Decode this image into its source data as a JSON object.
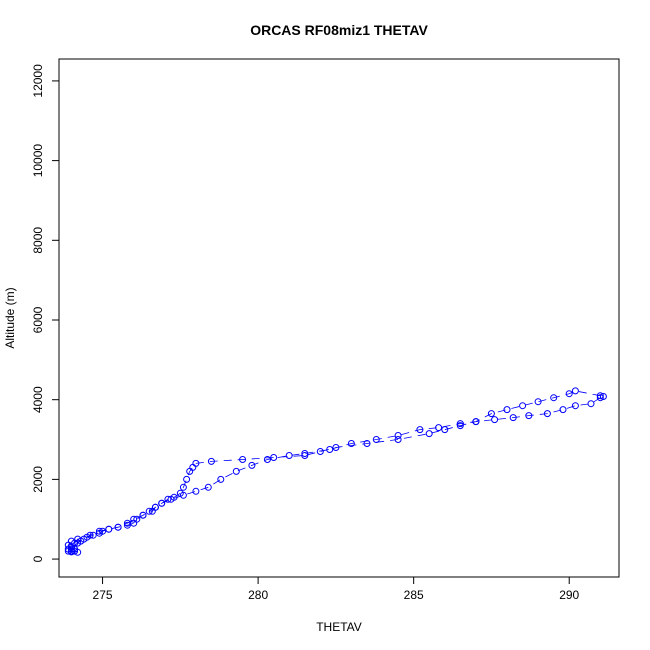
{
  "chart_data": {
    "type": "scatter",
    "title": "ORCAS RF08miz1 THETAV",
    "xlabel": "THETAV",
    "ylabel": "Altitude (m)",
    "xlim": [
      273.6,
      291.6
    ],
    "ylim": [
      -450,
      12550
    ],
    "xticks": [
      "275",
      "280",
      "285",
      "290"
    ],
    "yticks": [
      "0",
      "2000",
      "4000",
      "6000",
      "8000",
      "10000",
      "12000"
    ],
    "grid": false,
    "legend": "none",
    "colors": {
      "series": "#0000ff",
      "axis": "#000000"
    },
    "series": [
      {
        "marker": "open-circle",
        "line": "dashed",
        "points": [
          [
            274.0,
            300
          ],
          [
            274.1,
            250
          ],
          [
            273.9,
            200
          ],
          [
            274.0,
            180
          ],
          [
            274.1,
            200
          ],
          [
            274.2,
            170
          ],
          [
            274.0,
            250
          ],
          [
            273.9,
            350
          ],
          [
            274.0,
            450
          ],
          [
            274.1,
            400
          ],
          [
            274.2,
            500
          ],
          [
            274.3,
            450
          ],
          [
            274.5,
            550
          ],
          [
            274.7,
            600
          ],
          [
            274.9,
            650
          ],
          [
            275.0,
            700
          ],
          [
            275.2,
            750
          ],
          [
            275.5,
            800
          ],
          [
            275.8,
            850
          ],
          [
            276.0,
            900
          ],
          [
            276.1,
            1000
          ],
          [
            276.3,
            1100
          ],
          [
            276.5,
            1200
          ],
          [
            276.7,
            1300
          ],
          [
            276.9,
            1400
          ],
          [
            277.1,
            1500
          ],
          [
            277.3,
            1550
          ],
          [
            277.5,
            1650
          ],
          [
            277.6,
            1800
          ],
          [
            277.7,
            2000
          ],
          [
            277.8,
            2200
          ],
          [
            277.9,
            2300
          ],
          [
            278.0,
            2400
          ],
          [
            278.5,
            2450
          ],
          [
            279.5,
            2500
          ],
          [
            280.5,
            2550
          ],
          [
            281.5,
            2600
          ],
          [
            282.0,
            2700
          ],
          [
            282.5,
            2800
          ],
          [
            283.5,
            2900
          ],
          [
            284.5,
            3000
          ],
          [
            285.5,
            3150
          ],
          [
            286.0,
            3250
          ],
          [
            286.5,
            3350
          ],
          [
            287.0,
            3450
          ],
          [
            287.5,
            3650
          ],
          [
            288.0,
            3750
          ],
          [
            288.5,
            3850
          ],
          [
            289.0,
            3950
          ],
          [
            289.5,
            4050
          ],
          [
            290.0,
            4150
          ],
          [
            290.2,
            4220
          ],
          [
            291.0,
            4100
          ],
          [
            291.1,
            4080
          ],
          [
            291.0,
            4050
          ],
          [
            290.7,
            3900
          ],
          [
            290.2,
            3850
          ],
          [
            289.8,
            3750
          ],
          [
            289.3,
            3650
          ],
          [
            288.7,
            3600
          ],
          [
            288.2,
            3550
          ],
          [
            287.6,
            3500
          ],
          [
            287.0,
            3450
          ],
          [
            286.5,
            3400
          ],
          [
            285.8,
            3300
          ],
          [
            285.2,
            3250
          ],
          [
            284.5,
            3100
          ],
          [
            283.8,
            3000
          ],
          [
            283.0,
            2900
          ],
          [
            282.3,
            2750
          ],
          [
            281.5,
            2650
          ],
          [
            281.0,
            2600
          ],
          [
            280.3,
            2500
          ],
          [
            279.8,
            2350
          ],
          [
            279.3,
            2200
          ],
          [
            278.8,
            2000
          ],
          [
            278.4,
            1800
          ],
          [
            278.0,
            1700
          ],
          [
            277.6,
            1600
          ],
          [
            277.2,
            1500
          ],
          [
            276.9,
            1400
          ],
          [
            276.7,
            1300
          ],
          [
            276.6,
            1200
          ],
          [
            276.3,
            1100
          ],
          [
            276.0,
            1000
          ],
          [
            275.8,
            900
          ],
          [
            275.5,
            800
          ],
          [
            275.2,
            750
          ],
          [
            274.9,
            700
          ],
          [
            274.6,
            600
          ],
          [
            274.4,
            500
          ],
          [
            274.2,
            400
          ],
          [
            274.0,
            300
          ],
          [
            273.9,
            250
          ],
          [
            274.0,
            200
          ]
        ]
      }
    ]
  }
}
